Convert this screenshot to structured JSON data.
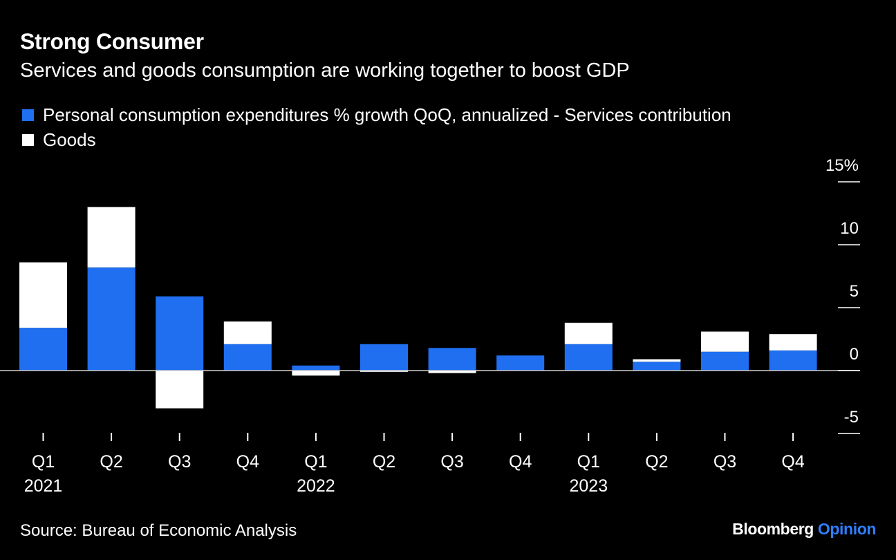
{
  "title": "Strong Consumer",
  "subtitle": "Services and goods consumption are working together to boost GDP",
  "legend": {
    "services_label": "Personal consumption expenditures % growth QoQ, annualized - Services contribution",
    "goods_label": "Goods"
  },
  "source": "Source: Bureau of Economic Analysis",
  "brand": {
    "name": "Bloomberg",
    "section": "Opinion"
  },
  "colors": {
    "background": "#000000",
    "services": "#1f6ff0",
    "goods": "#ffffff",
    "brand_opinion": "#2f7fff"
  },
  "chart_data": {
    "type": "bar",
    "stacked": true,
    "categories": [
      "Q1",
      "Q2",
      "Q3",
      "Q4",
      "Q1",
      "Q2",
      "Q3",
      "Q4",
      "Q1",
      "Q2",
      "Q3",
      "Q4"
    ],
    "year_labels": [
      "2021",
      "",
      "",
      "",
      "2022",
      "",
      "",
      "",
      "2023",
      "",
      "",
      ""
    ],
    "series": [
      {
        "name": "Personal consumption expenditures % growth QoQ, annualized - Services contribution",
        "values": [
          3.4,
          8.2,
          5.9,
          2.1,
          0.4,
          2.1,
          1.8,
          1.2,
          2.1,
          0.7,
          1.5,
          1.6
        ]
      },
      {
        "name": "Goods",
        "values": [
          5.2,
          4.8,
          -3.0,
          1.8,
          -0.4,
          -0.1,
          -0.2,
          0.0,
          1.7,
          0.2,
          1.6,
          1.3
        ]
      }
    ],
    "y_ticks": [
      "15%",
      "10",
      "5",
      "0",
      "-5"
    ],
    "y_tick_values": [
      15,
      10,
      5,
      0,
      -5
    ],
    "ylim": [
      -5,
      15
    ],
    "grid": false,
    "y_axis_side": "right"
  }
}
